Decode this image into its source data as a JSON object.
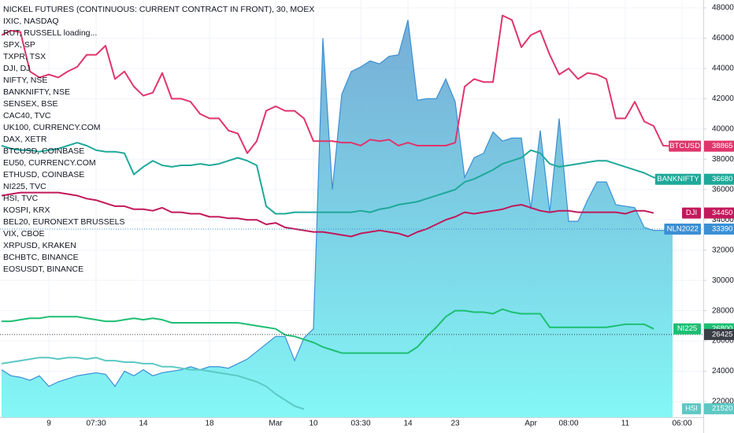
{
  "chart_data": {
    "type": "area",
    "legend": [
      "NICKEL FUTURES (CONTINUOUS: CURRENT CONTRACT IN FRONT), 30, MOEX",
      "IXIC, NASDAQ",
      "RUT, RUSSELL loading...",
      "SPX, SP",
      "TXPR, TSX",
      "DJI, DJ",
      "NIFTY, NSE",
      "BANKNIFTY, NSE",
      "SENSEX, BSE",
      "CAC40, TVC",
      "UK100, CURRENCY.COM",
      "DAX, XETR",
      "BTCUSD, COINBASE",
      "EU50, CURRENCY.COM",
      "ETHUSD, COINBASE",
      "NI225, TVC",
      "HSI, TVC",
      "KOSPI, KRX",
      "BEL20, EURONEXT BRUSSELS",
      "VIX, CBOE",
      "XRPUSD, KRAKEN",
      "BCHBTC, BINANCE",
      "EOSUSDT, BINANCE"
    ],
    "categories": [
      null,
      null,
      null,
      null,
      null,
      "9",
      null,
      null,
      null,
      null,
      "07:30",
      null,
      null,
      null,
      null,
      "14",
      null,
      null,
      null,
      null,
      null,
      null,
      "18",
      null,
      null,
      null,
      null,
      null,
      null,
      "Mar",
      null,
      null,
      null,
      "10",
      null,
      null,
      null,
      null,
      "03:30",
      null,
      null,
      null,
      null,
      "14",
      null,
      null,
      null,
      null,
      "23",
      null,
      null,
      null,
      null,
      null,
      null,
      null,
      "Apr",
      null,
      null,
      null,
      "08:00",
      null,
      null,
      null,
      null,
      null,
      "11",
      null,
      null,
      null,
      null,
      null,
      "06:00"
    ],
    "ylim": [
      20960,
      48520
    ],
    "yticks": [
      22000,
      24000,
      26000,
      28000,
      30000,
      32000,
      34000,
      36000,
      38000,
      40000,
      42000,
      44000,
      46000,
      48000
    ],
    "series": [
      {
        "name": "NLN2022",
        "style": "area",
        "color": "#3b8fd4",
        "tag": 33390,
        "price_line": true,
        "values": [
          24100,
          23700,
          23600,
          23400,
          23700,
          23000,
          23300,
          23500,
          23700,
          23800,
          23900,
          23800,
          23000,
          24000,
          23700,
          24100,
          23700,
          23900,
          24000,
          24100,
          24300,
          24100,
          24300,
          24300,
          24200,
          24500,
          24800,
          25300,
          25800,
          26300,
          26300,
          24700,
          26200,
          26800,
          46000,
          36000,
          42300,
          43800,
          44100,
          44500,
          44300,
          44800,
          44900,
          47200,
          41900,
          42000,
          42000,
          43300,
          41800,
          36800,
          38100,
          38400,
          39800,
          39200,
          39400,
          39400,
          34700,
          39900,
          34500,
          40700,
          33900,
          33900,
          35300,
          36500,
          36500,
          35000,
          34900,
          34800,
          33500,
          33300,
          33300,
          33390,
          null
        ]
      },
      {
        "name": "HSI",
        "style": "line",
        "color": "#5cc9c4",
        "tag": 21520,
        "values": [
          24500,
          24600,
          24700,
          24800,
          24900,
          24900,
          24800,
          24900,
          24900,
          24800,
          24900,
          24700,
          24700,
          24600,
          24600,
          24500,
          24500,
          24300,
          24300,
          24200,
          24100,
          24100,
          24000,
          23900,
          23800,
          23700,
          23500,
          23300,
          23000,
          22500,
          22100,
          21700,
          21500,
          null,
          null,
          null,
          null,
          null,
          null,
          null,
          null,
          null,
          null,
          null,
          null,
          null,
          null,
          null,
          null,
          null,
          null,
          null,
          null,
          null,
          null,
          null,
          null,
          null,
          null,
          null,
          null,
          null,
          null,
          null,
          null,
          null,
          null,
          null,
          null,
          null,
          null,
          null,
          null
        ]
      },
      {
        "name": "BTCUSD",
        "style": "line",
        "color": "#e0356b",
        "tag": 38865,
        "values": [
          46200,
          46500,
          46400,
          43800,
          43400,
          43600,
          43400,
          43800,
          44100,
          44900,
          44900,
          45500,
          43300,
          43800,
          42800,
          42200,
          42400,
          43700,
          42000,
          42000,
          41800,
          41000,
          40700,
          40700,
          39900,
          39700,
          38400,
          39200,
          41200,
          41500,
          41200,
          41200,
          40700,
          39200,
          39200,
          39200,
          39100,
          39100,
          38900,
          39300,
          39200,
          39300,
          38900,
          39100,
          38900,
          38900,
          38900,
          38900,
          39100,
          42800,
          43300,
          43100,
          43100,
          47500,
          47200,
          45400,
          46200,
          46500,
          44900,
          43600,
          44000,
          43300,
          43700,
          43600,
          43300,
          40700,
          40700,
          41800,
          40500,
          40200,
          38900,
          38865,
          null
        ]
      },
      {
        "name": "BANKNIFTY",
        "style": "line",
        "color": "#1fa99a",
        "tag": 36680,
        "values": [
          38900,
          38700,
          38600,
          38600,
          38500,
          38600,
          38700,
          38900,
          39100,
          38900,
          38600,
          38500,
          38500,
          38400,
          37000,
          37500,
          37900,
          37600,
          37500,
          37600,
          37600,
          37700,
          37600,
          37700,
          37900,
          38100,
          37900,
          37600,
          34900,
          34400,
          34400,
          34500,
          34500,
          34500,
          34500,
          34500,
          34500,
          34500,
          34600,
          34500,
          34700,
          34800,
          35000,
          35100,
          35200,
          35400,
          35600,
          35800,
          36000,
          36500,
          36700,
          37000,
          37300,
          37700,
          37900,
          38100,
          38600,
          38400,
          37700,
          37500,
          37600,
          37700,
          37800,
          37900,
          37900,
          37700,
          37500,
          37300,
          37100,
          36800,
          36700,
          36680,
          null
        ]
      },
      {
        "name": "DJI",
        "style": "line",
        "color": "#c2185b",
        "tag": 34450,
        "values": [
          35600,
          35700,
          35800,
          35800,
          35800,
          35800,
          35800,
          35700,
          35600,
          35400,
          35300,
          35100,
          34900,
          34900,
          34700,
          34700,
          34600,
          34800,
          34500,
          34500,
          34400,
          34400,
          34200,
          34200,
          34100,
          34100,
          34000,
          34000,
          33700,
          33800,
          33500,
          33400,
          33300,
          33200,
          33200,
          33100,
          33000,
          32900,
          33100,
          33200,
          33300,
          33200,
          33100,
          32900,
          33200,
          33400,
          33700,
          34000,
          34200,
          34500,
          34400,
          34500,
          34600,
          34700,
          34900,
          35000,
          34800,
          34600,
          34500,
          34600,
          34600,
          34500,
          34500,
          34500,
          34500,
          34500,
          34400,
          34600,
          34600,
          34450,
          null,
          null,
          null
        ]
      },
      {
        "name": "NI225",
        "style": "line",
        "color": "#1dbf73",
        "tag": 26800,
        "values": [
          27300,
          27300,
          27400,
          27500,
          27500,
          27600,
          27600,
          27600,
          27600,
          27500,
          27400,
          27300,
          27300,
          27400,
          27500,
          27400,
          27500,
          27400,
          27200,
          27200,
          27200,
          27200,
          27200,
          27200,
          27200,
          27200,
          27100,
          27000,
          26900,
          26800,
          26400,
          26300,
          26100,
          25900,
          25600,
          25400,
          25200,
          25200,
          25200,
          25200,
          25200,
          25200,
          25200,
          25200,
          25600,
          26300,
          26900,
          27600,
          28000,
          28000,
          27900,
          27900,
          27800,
          28100,
          27900,
          27800,
          27800,
          27800,
          26900,
          26900,
          26900,
          26900,
          26900,
          26900,
          26900,
          27000,
          27100,
          27100,
          27100,
          26800,
          null,
          null,
          null
        ]
      }
    ],
    "crosshair": {
      "value": 26425,
      "color": "#3a3e45"
    }
  }
}
